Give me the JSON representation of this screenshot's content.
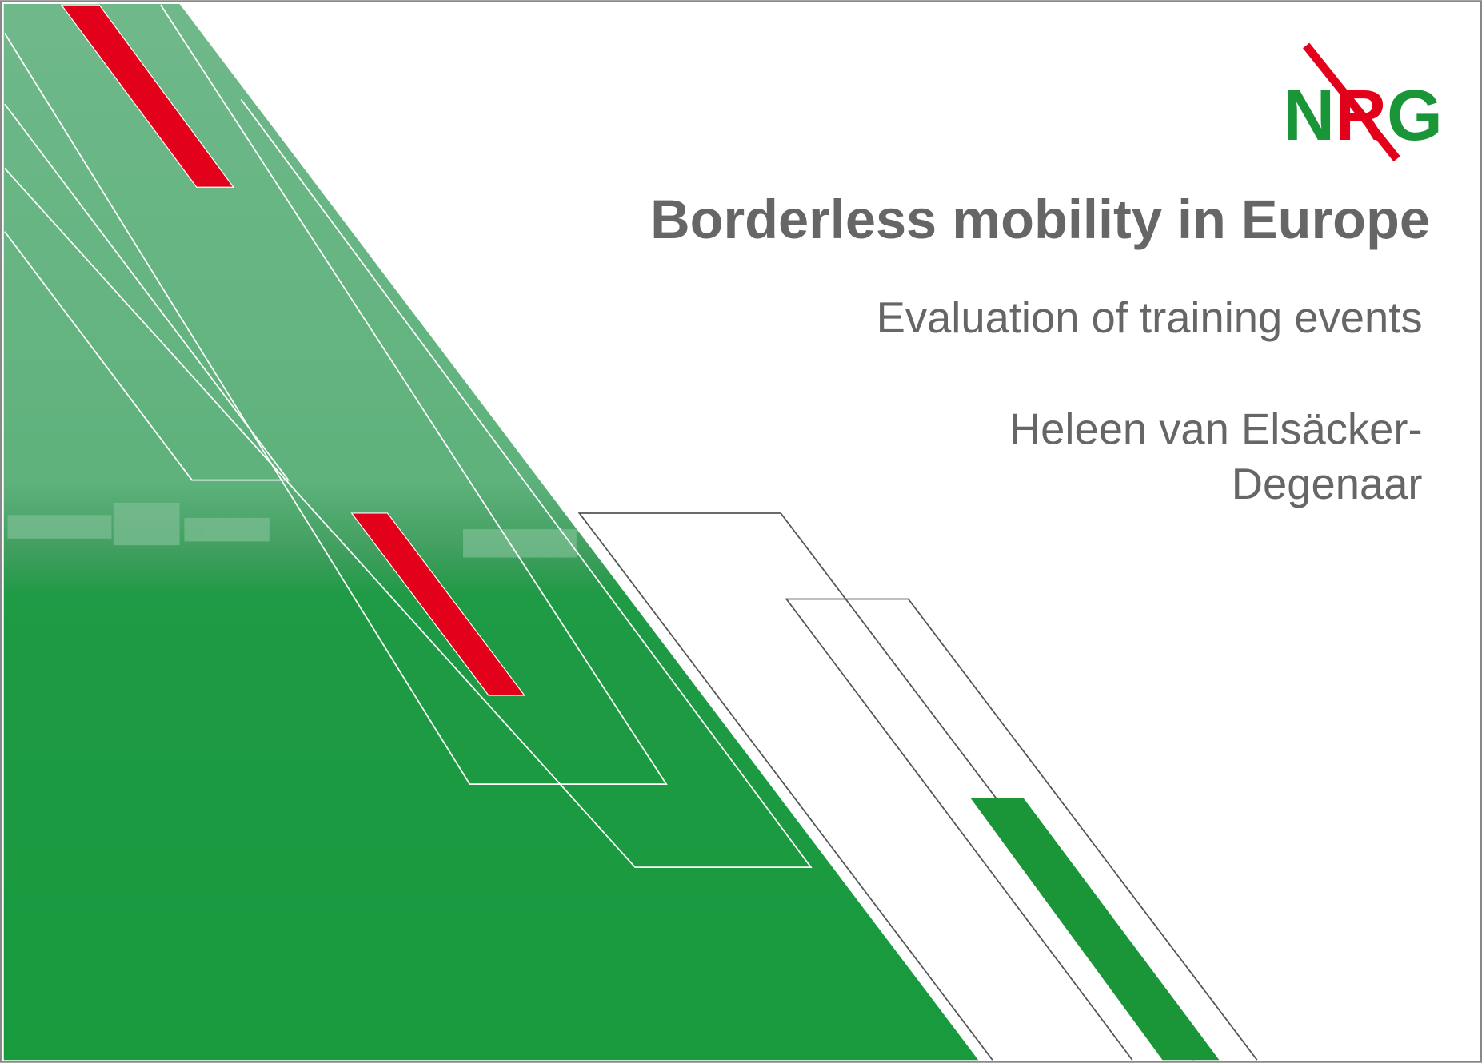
{
  "slide": {
    "logo": "NRG",
    "title": "Borderless mobility in Europe",
    "subtitle": "Evaluation of training events",
    "author_lines": [
      "Heleen van Elsäcker-",
      "Degenaar"
    ]
  }
}
